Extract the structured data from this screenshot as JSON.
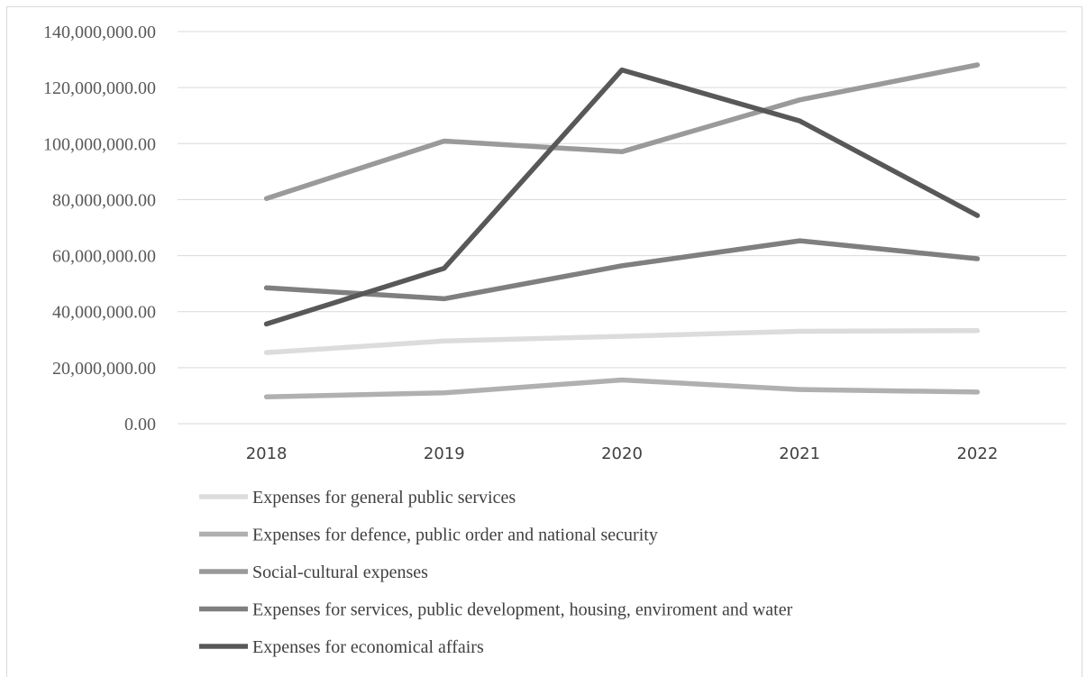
{
  "chart_data": {
    "type": "line",
    "title": "",
    "xlabel": "",
    "ylabel": "",
    "categories": [
      "2018",
      "2019",
      "2020",
      "2021",
      "2022"
    ],
    "ylim": [
      0,
      140000000
    ],
    "yticks": [
      0,
      20000000,
      40000000,
      60000000,
      80000000,
      100000000,
      120000000,
      140000000
    ],
    "ytick_labels": [
      "0.00",
      "20,000,000.00",
      "40,000,000.00",
      "60,000,000.00",
      "80,000,000.00",
      "100,000,000.00",
      "120,000,000.00",
      "140,000,000.00"
    ],
    "grid": "horizontal",
    "legend_position": "bottom",
    "series": [
      {
        "name": "Expenses for general public services",
        "color": "#dcdcdc",
        "values": [
          25400000,
          29500000,
          31200000,
          33000000,
          33200000
        ]
      },
      {
        "name": "Expenses for defence, public order and national security",
        "color": "#b0b0b0",
        "values": [
          9600000,
          11000000,
          15600000,
          12200000,
          11300000
        ]
      },
      {
        "name": "Social-cultural expenses",
        "color": "#9a9a9a",
        "values": [
          80400000,
          100900000,
          97100000,
          115600000,
          128100000
        ]
      },
      {
        "name": "Expenses for services, public development, housing, enviroment and water",
        "color": "#7f7f7f",
        "values": [
          48500000,
          44600000,
          56400000,
          65300000,
          58900000
        ]
      },
      {
        "name": "Expenses for economical affairs",
        "color": "#585858",
        "values": [
          35600000,
          55500000,
          126300000,
          108100000,
          74300000
        ]
      }
    ]
  }
}
